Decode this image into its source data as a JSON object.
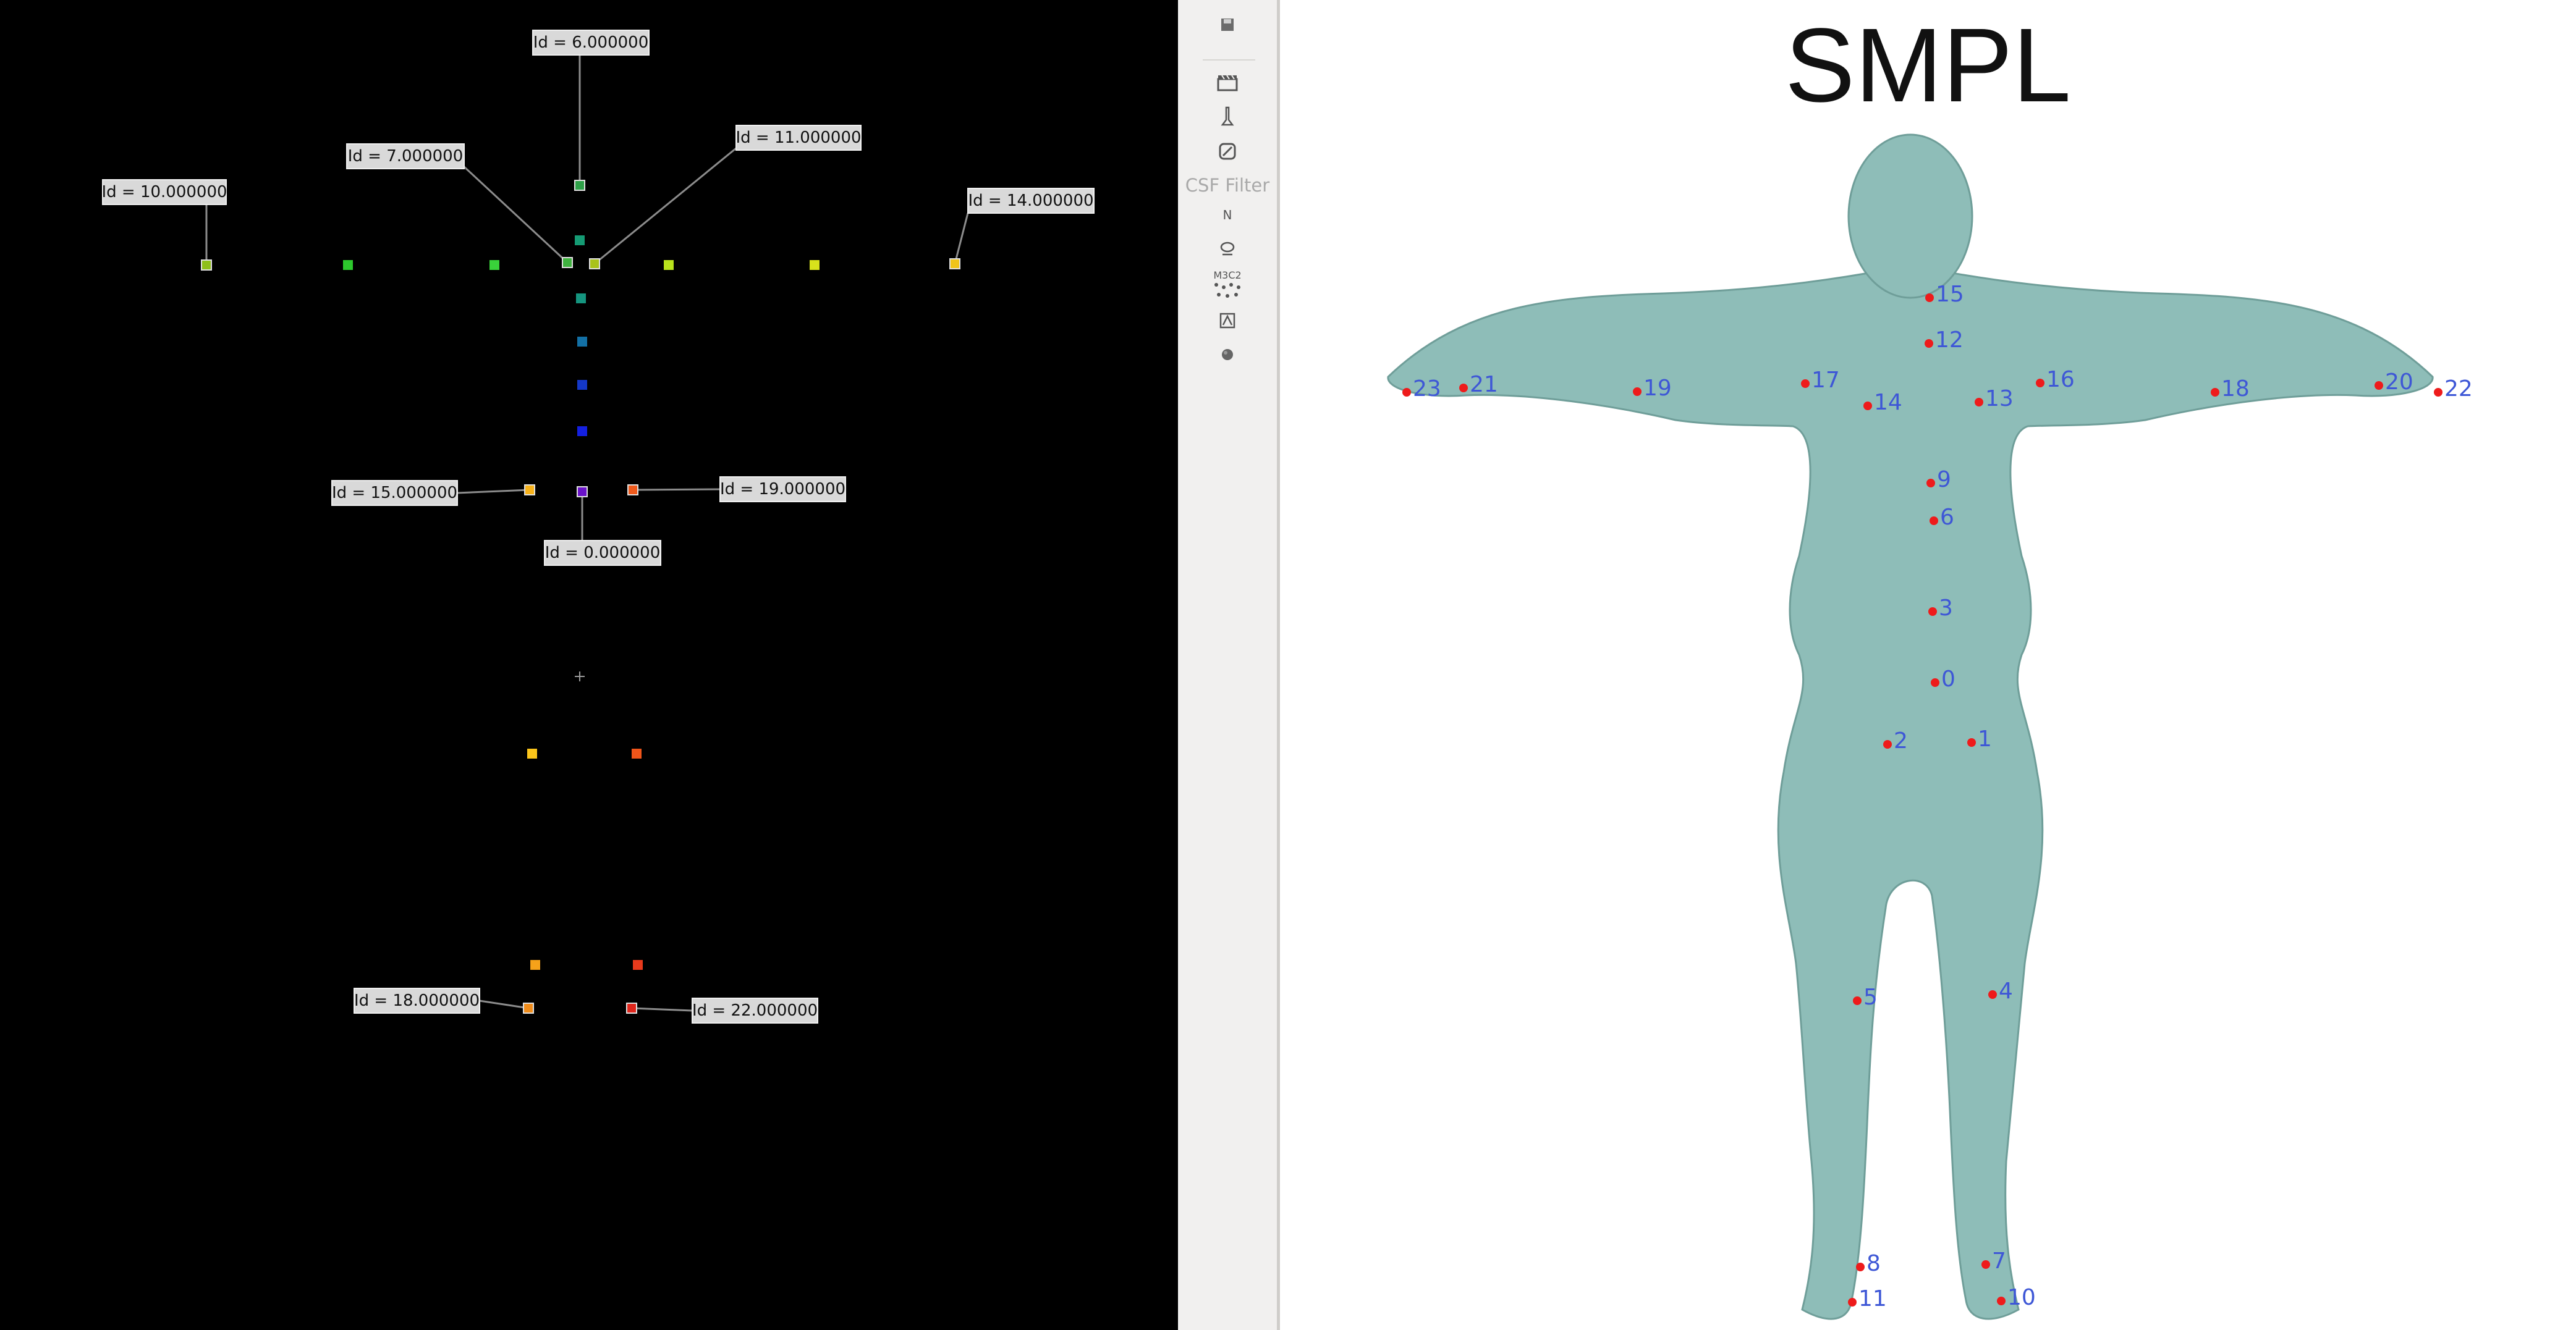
{
  "viewport": {
    "points": [
      {
        "id": "10",
        "label": "Id = 10.000000",
        "color": "#8fbf1a"
      },
      {
        "id": "7",
        "label": "Id = 7.000000",
        "color": "#3fb23f"
      },
      {
        "id": "6",
        "label": "Id = 6.000000",
        "color": "#2ea048"
      },
      {
        "id": "11",
        "label": "Id = 11.000000",
        "color": "#a9c21a"
      },
      {
        "id": "14",
        "label": "Id = 14.000000",
        "color": "#f0c419"
      },
      {
        "id": "15",
        "label": "Id = 15.000000",
        "color": "#f7b21a"
      },
      {
        "id": "0",
        "label": "Id = 0.000000",
        "color": "#6a12c9"
      },
      {
        "id": "19",
        "label": "Id = 19.000000",
        "color": "#ef5a1c"
      },
      {
        "id": "18",
        "label": "Id = 18.000000",
        "color": "#f08c1a"
      },
      {
        "id": "22",
        "label": "Id = 22.000000",
        "color": "#e0261c"
      }
    ],
    "unlabeled_point_colors": [
      "#2dc92d",
      "#39d23a",
      "#b8e21c",
      "#d8e31c",
      "#159b74",
      "#15957f",
      "#1370a5",
      "#1438c8",
      "#1420e0",
      "#fbc51b",
      "#f0551a",
      "#f6a21a",
      "#e83a1c"
    ]
  },
  "toolbar": {
    "icons": [
      "save-icon",
      "clapperboard-icon",
      "probe-icon",
      "no-clip-icon",
      "normals-icon",
      "clean-icon",
      "m3c2-icon",
      "compass-icon",
      "sphere-icon"
    ],
    "csf_filter_label": "CSF Filter",
    "normals_glyph": "N",
    "m3c2_glyph": "M3C2"
  },
  "figure": {
    "title": "SMPL",
    "body_color": "#8ebdb8",
    "joints": [
      "0",
      "1",
      "2",
      "3",
      "4",
      "5",
      "6",
      "7",
      "8",
      "9",
      "10",
      "11",
      "12",
      "13",
      "14",
      "15",
      "16",
      "17",
      "18",
      "19",
      "20",
      "21",
      "22",
      "23"
    ]
  }
}
